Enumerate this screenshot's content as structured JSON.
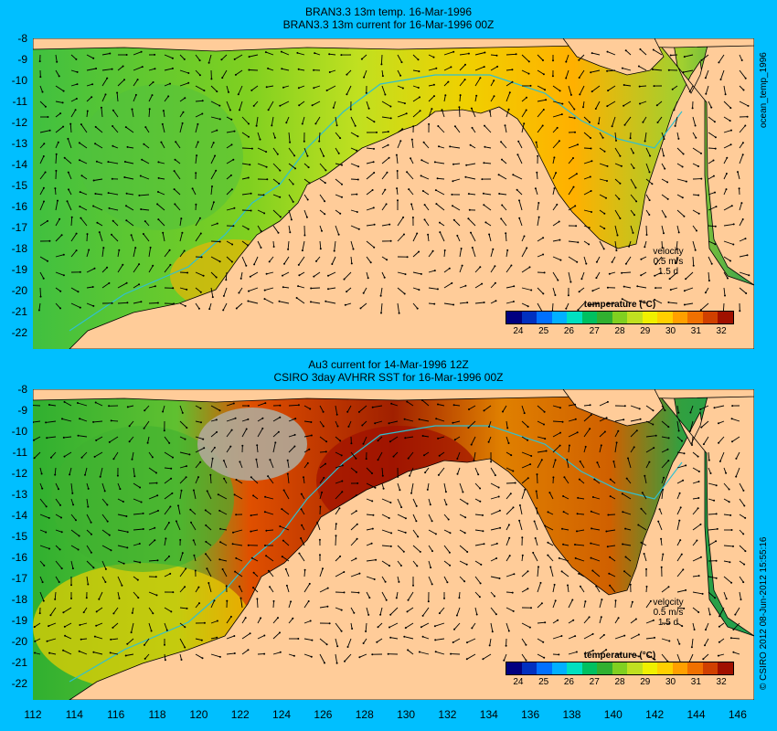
{
  "panel1": {
    "title_line1": "BRAN3.3 13m temp. 16-Mar-1996",
    "title_line2": "BRAN3.3 13m current for 16-Mar-1996 00Z",
    "side_label": "ocean_temp_1996"
  },
  "panel2": {
    "title_line1": "Au3 current for 14-Mar-1996 12Z",
    "title_line2": "CSIRO 3day AVHRR SST for 16-Mar-1996 00Z",
    "side_label": "© CSIRO 2012   08-Jun-2012 15:55:16"
  },
  "velocity_legend": {
    "line1": "velocity",
    "line2": "0.5 m/s",
    "line3": "1.5 d"
  },
  "colorbar": {
    "title": "temperature (°C)",
    "ticks": [
      "24",
      "25",
      "26",
      "27",
      "28",
      "29",
      "30",
      "31",
      "32"
    ],
    "range": [
      23.5,
      32.5
    ],
    "colors": [
      "#000080",
      "#0030c0",
      "#0070ff",
      "#00b0ff",
      "#00e0c0",
      "#00c060",
      "#30b030",
      "#80d020",
      "#c0e020",
      "#f0f000",
      "#ffd000",
      "#ffa000",
      "#f07000",
      "#d04000",
      "#a01000"
    ]
  },
  "map_axes": {
    "lon_ticks": [
      "112",
      "114",
      "116",
      "118",
      "120",
      "122",
      "124",
      "126",
      "128",
      "130",
      "132",
      "134",
      "136",
      "138",
      "140",
      "142",
      "144",
      "146"
    ],
    "lat_ticks": [
      "-8",
      "-9",
      "-10",
      "-11",
      "-12",
      "-13",
      "-14",
      "-15",
      "-16",
      "-17",
      "-18",
      "-19",
      "-20",
      "-21",
      "-22"
    ],
    "lon_range": [
      112,
      146.8
    ],
    "lat_range": [
      -8,
      -22.8
    ]
  },
  "colors": {
    "background": "#00bfff",
    "land": "#ffcc99",
    "cloud": "#b0a898",
    "coast_line": "#000000",
    "bathy_contour": "#30c0d0"
  }
}
